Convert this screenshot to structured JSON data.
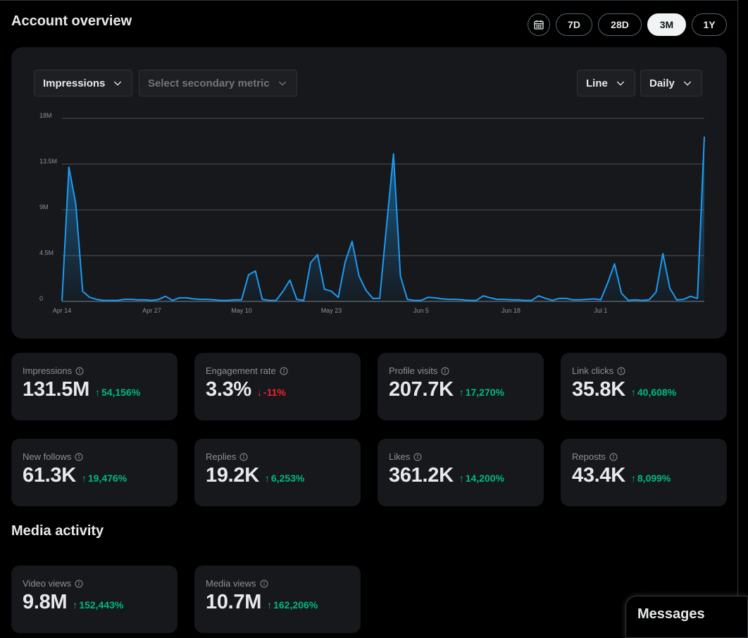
{
  "header": {
    "title": "Account overview"
  },
  "range": {
    "calendar_icon": "calendar-icon",
    "options": [
      "7D",
      "28D",
      "3M",
      "1Y"
    ],
    "selected": "3M"
  },
  "controls": {
    "primary_metric": "Impressions",
    "secondary_metric_placeholder": "Select secondary metric",
    "chart_type": "Line",
    "interval": "Daily"
  },
  "chart_data": {
    "type": "area",
    "y_ticks": [
      "0",
      "4.5M",
      "9M",
      "13.5M",
      "18M"
    ],
    "ylim": [
      0,
      18000000
    ],
    "x_ticks": [
      "Apr 14",
      "Apr 27",
      "May 10",
      "May 23",
      "Jun 5",
      "Jun 18",
      "Jul 1"
    ],
    "x_start": "Apr 14",
    "x_end": "Jul 14",
    "grid": true,
    "line_color": "#1d9bf0",
    "series": [
      {
        "values": [
          0.05,
          13.2,
          9.6,
          1.0,
          0.4,
          0.2,
          0.1,
          0.1,
          0.1,
          0.2,
          0.2,
          0.15,
          0.15,
          0.1,
          0.2,
          0.5,
          0.1,
          0.35,
          0.35,
          0.25,
          0.2,
          0.2,
          0.15,
          0.1,
          0.1,
          0.15,
          0.15,
          2.6,
          3.0,
          0.2,
          0.1,
          0.1,
          1.0,
          2.1,
          0.2,
          0.1,
          3.8,
          4.6,
          1.2,
          1.0,
          0.4,
          3.9,
          5.9,
          2.5,
          1.1,
          0.3,
          0.3,
          7.5,
          14.5,
          2.5,
          0.2,
          0.1,
          0.1,
          0.4,
          0.35,
          0.25,
          0.2,
          0.2,
          0.15,
          0.1,
          0.1,
          0.55,
          0.35,
          0.2,
          0.2,
          0.15,
          0.15,
          0.1,
          0.1,
          0.55,
          0.3,
          0.1,
          0.3,
          0.3,
          0.15,
          0.15,
          0.2,
          0.25,
          0.15,
          1.8,
          3.7,
          0.8,
          0.1,
          0.15,
          0.1,
          0.15,
          0.9,
          4.7,
          1.3,
          0.15,
          0.2,
          0.5,
          0.3,
          16.2
        ]
      }
    ]
  },
  "metrics": [
    {
      "label": "Impressions",
      "value": "131.5M",
      "change": "54,156%",
      "direction": "up"
    },
    {
      "label": "Engagement rate",
      "value": "3.3%",
      "change": "-11%",
      "direction": "down"
    },
    {
      "label": "Profile visits",
      "value": "207.7K",
      "change": "17,270%",
      "direction": "up"
    },
    {
      "label": "Link clicks",
      "value": "35.8K",
      "change": "40,608%",
      "direction": "up"
    },
    {
      "label": "New follows",
      "value": "61.3K",
      "change": "19,476%",
      "direction": "up"
    },
    {
      "label": "Replies",
      "value": "19.2K",
      "change": "6,253%",
      "direction": "up"
    },
    {
      "label": "Likes",
      "value": "361.2K",
      "change": "14,200%",
      "direction": "up"
    },
    {
      "label": "Reposts",
      "value": "43.4K",
      "change": "8,099%",
      "direction": "up"
    }
  ],
  "media": {
    "title": "Media activity",
    "metrics": [
      {
        "label": "Video views",
        "value": "9.8M",
        "change": "152,443%",
        "direction": "up"
      },
      {
        "label": "Media views",
        "value": "10.7M",
        "change": "162,206%",
        "direction": "up"
      }
    ]
  },
  "messages": {
    "label": "Messages"
  },
  "colors": {
    "up": "#00ba7c",
    "down": "#f4212e",
    "accent": "#1d9bf0",
    "card": "#16181c"
  }
}
